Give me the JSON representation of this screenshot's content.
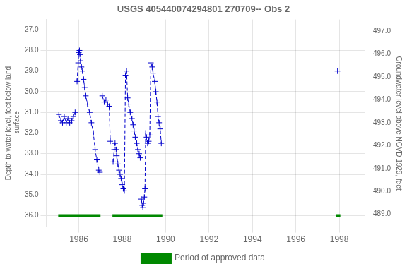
{
  "chart_data": {
    "type": "line",
    "title": "USGS 405440074294801 270709-- Obs 2",
    "ylabel": "Depth to water level, feet below land\n surface",
    "y2label": "Groundwater level above NGVD 1929, feet",
    "xlim": [
      1984.5,
      1999.2
    ],
    "xticks": [
      1986,
      1988,
      1990,
      1992,
      1994,
      1996,
      1998
    ],
    "ylim": [
      36.55,
      26.5
    ],
    "yticks": [
      {
        "value": 27.0,
        "label": "27.0"
      },
      {
        "value": 28.0,
        "label": "28.0"
      },
      {
        "value": 29.0,
        "label": "29.0"
      },
      {
        "value": 30.0,
        "label": "30.0"
      },
      {
        "value": 31.0,
        "label": "31.0"
      },
      {
        "value": 32.0,
        "label": "32.0"
      },
      {
        "value": 33.0,
        "label": "33.0"
      },
      {
        "value": 34.0,
        "label": "34.0"
      },
      {
        "value": 35.0,
        "label": "35.0"
      },
      {
        "value": 36.0,
        "label": "36.0"
      }
    ],
    "y2lim": [
      488.45,
      497.5
    ],
    "y2ticks": [
      {
        "value": 497.0,
        "label": "497.0"
      },
      {
        "value": 496.0,
        "label": "496.0"
      },
      {
        "value": 495.0,
        "label": "495.0"
      },
      {
        "value": 494.0,
        "label": "494.0"
      },
      {
        "value": 493.0,
        "label": "493.0"
      },
      {
        "value": 492.0,
        "label": "492.0"
      },
      {
        "value": 491.0,
        "label": "491.0"
      },
      {
        "value": 490.0,
        "label": "490.0"
      },
      {
        "value": 489.0,
        "label": "489.0"
      }
    ],
    "grid": true,
    "legend": "bottom",
    "series": [
      {
        "color": "#0000cc",
        "line_style": "dashed",
        "marker": "plus",
        "segments": [
          {
            "x": [
              1985.08,
              1985.17,
              1985.25,
              1985.33,
              1985.42,
              1985.5,
              1985.58,
              1985.67,
              1985.75,
              1985.83
            ],
            "values": [
              31.1,
              31.4,
              31.5,
              31.2,
              31.5,
              31.3,
              31.5,
              31.4,
              31.2,
              31.0
            ]
          },
          {
            "x": [
              1985.92,
              1985.97,
              1986.0,
              1986.03,
              1986.05,
              1986.08,
              1986.12,
              1986.17,
              1986.22,
              1986.27,
              1986.32,
              1986.4,
              1986.5,
              1986.58,
              1986.67,
              1986.75,
              1986.83,
              1986.92,
              1986.97
            ],
            "values": [
              29.5,
              28.6,
              28.1,
              28.0,
              28.2,
              28.5,
              28.8,
              29.0,
              29.4,
              29.8,
              30.2,
              30.6,
              31.0,
              31.5,
              32.0,
              32.8,
              33.3,
              33.8,
              33.9
            ]
          },
          {
            "x": [
              1987.08,
              1987.17,
              1987.25,
              1987.33,
              1987.4,
              1987.45
            ],
            "values": [
              30.2,
              30.5,
              30.4,
              30.6,
              30.7,
              32.4
            ]
          },
          {
            "x": [
              1987.58,
              1987.63,
              1987.67,
              1987.72,
              1987.75,
              1987.8,
              1987.85,
              1987.9,
              1987.95,
              1988.0,
              1988.05,
              1988.1,
              1988.15,
              1988.2,
              1988.25,
              1988.3,
              1988.37,
              1988.45,
              1988.5,
              1988.55,
              1988.6,
              1988.67,
              1988.72,
              1988.78,
              1988.83
            ],
            "values": [
              33.4,
              32.8,
              32.5,
              32.8,
              33.1,
              33.5,
              33.8,
              34.0,
              34.2,
              34.5,
              34.7,
              34.8,
              29.2,
              29.0,
              30.3,
              30.6,
              31.0,
              31.3,
              31.6,
              31.9,
              32.2,
              32.5,
              32.8,
              33.0,
              33.2
            ]
          },
          {
            "x": [
              1988.88,
              1988.92,
              1988.95,
              1988.98,
              1989.02,
              1989.05,
              1989.08,
              1989.12,
              1989.17,
              1989.22,
              1989.27,
              1989.32,
              1989.38,
              1989.42,
              1989.5,
              1989.55,
              1989.6,
              1989.65,
              1989.7,
              1989.75,
              1989.8
            ],
            "values": [
              35.2,
              35.5,
              35.6,
              35.4,
              35.1,
              34.7,
              32.0,
              32.2,
              32.5,
              32.4,
              32.1,
              28.6,
              28.8,
              29.1,
              29.5,
              30.0,
              30.5,
              31.2,
              31.5,
              31.8,
              32.5
            ]
          },
          {
            "x": [
              1997.92
            ],
            "values": [
              29.0
            ]
          }
        ]
      },
      {
        "name": "Period of approved data",
        "color": "#008800",
        "line_style": "solid",
        "marker": "none",
        "spans": [
          [
            1985.05,
            1987.0
          ],
          [
            1987.55,
            1989.85
          ],
          [
            1997.85,
            1998.05
          ]
        ],
        "values": [
          36.0,
          36.0,
          36.0
        ]
      }
    ]
  }
}
